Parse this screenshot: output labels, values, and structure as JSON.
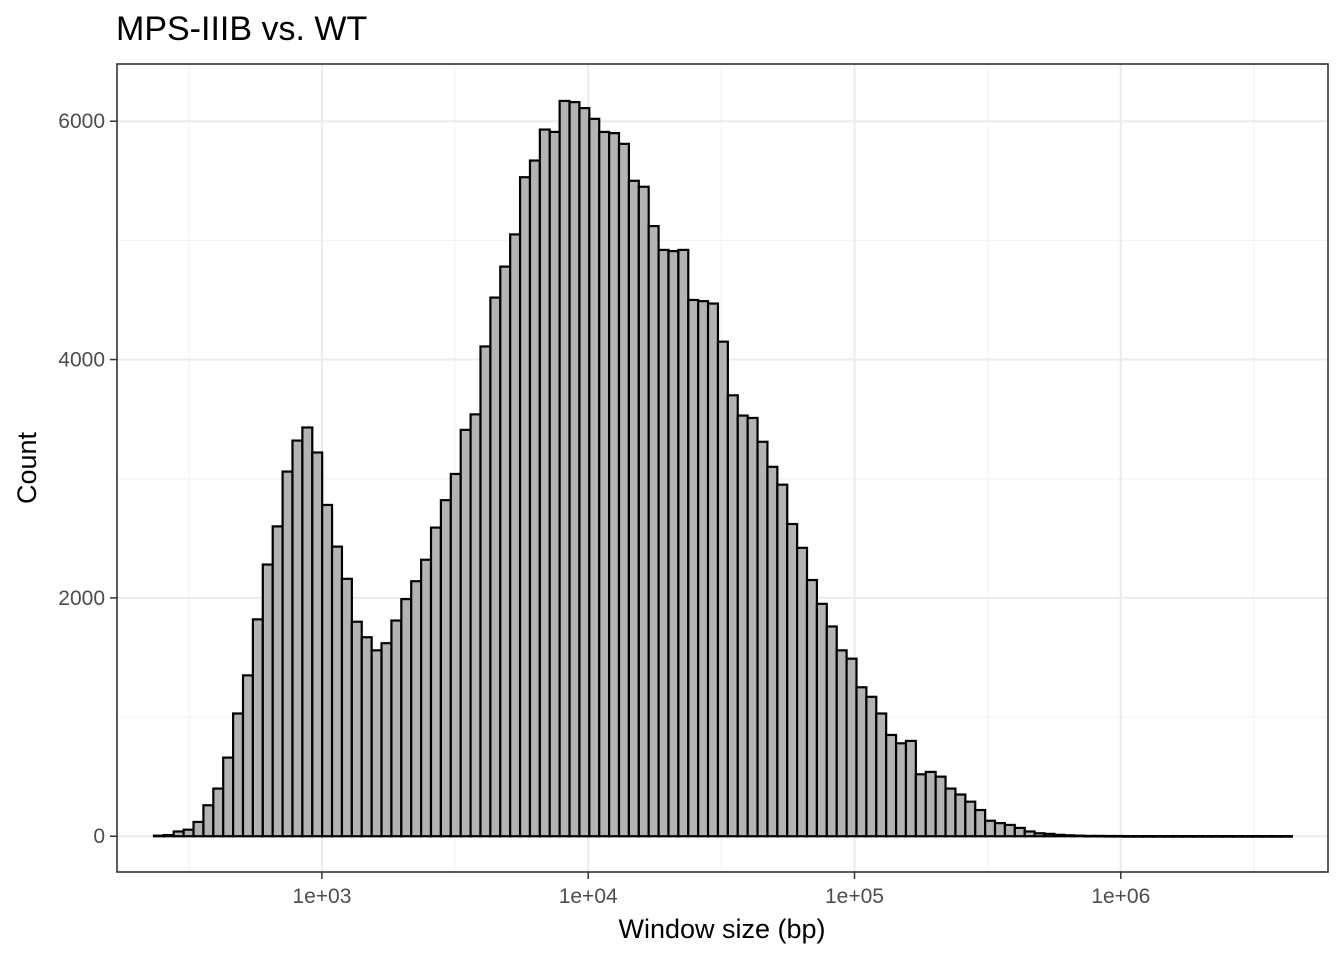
{
  "chart_data": {
    "type": "bar",
    "subtype": "histogram",
    "title": "MPS-IIIB vs. WT",
    "xlabel": "Window size (bp)",
    "ylabel": "Count",
    "x_scale": "log10",
    "xlim": [
      170,
      6000000
    ],
    "ylim": [
      -300,
      6480
    ],
    "x_ticks": [
      {
        "value": 1000,
        "label": "1e+03"
      },
      {
        "value": 10000,
        "label": "1e+04"
      },
      {
        "value": 100000,
        "label": "1e+05"
      },
      {
        "value": 1000000,
        "label": "1e+06"
      }
    ],
    "y_ticks": [
      {
        "value": 0,
        "label": "0"
      },
      {
        "value": 2000,
        "label": "2000"
      },
      {
        "value": 4000,
        "label": "4000"
      },
      {
        "value": 6000,
        "label": "6000"
      }
    ],
    "grid": true,
    "bin_edge_start": 234,
    "bin_edge_end": 4390000,
    "bins": 115,
    "values": [
      5,
      10,
      40,
      55,
      120,
      260,
      400,
      660,
      1030,
      1350,
      1820,
      2280,
      2600,
      3060,
      3320,
      3430,
      3220,
      2780,
      2430,
      2160,
      1800,
      1670,
      1560,
      1620,
      1810,
      1990,
      2140,
      2320,
      2590,
      2820,
      3040,
      3410,
      3540,
      4110,
      4520,
      4780,
      5050,
      5530,
      5670,
      5930,
      5910,
      6170,
      6160,
      6110,
      6020,
      5910,
      5900,
      5810,
      5500,
      5450,
      5120,
      4920,
      4910,
      4920,
      4500,
      4490,
      4470,
      4150,
      3700,
      3530,
      3510,
      3310,
      3100,
      2950,
      2620,
      2420,
      2150,
      1950,
      1760,
      1560,
      1490,
      1250,
      1170,
      1030,
      850,
      780,
      800,
      520,
      540,
      500,
      400,
      350,
      290,
      220,
      130,
      110,
      95,
      70,
      40,
      25,
      20,
      12,
      8,
      5,
      3,
      3,
      2,
      2,
      1,
      1,
      1,
      1,
      1,
      1,
      1,
      1,
      1,
      1,
      1,
      1,
      1,
      1,
      1,
      1,
      1
    ],
    "fill_color": "#b3b3b3",
    "outline_color": "#000000"
  }
}
